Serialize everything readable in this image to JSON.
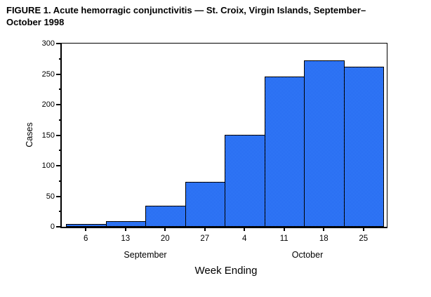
{
  "title": {
    "line1": "FIGURE 1. Acute hemorragic conjunctivitis — St. Croix, Virgin Islands, September–",
    "line2": "October 1998"
  },
  "chart_data": {
    "type": "bar",
    "title": "FIGURE 1. Acute hemorragic conjunctivitis — St. Croix, Virgin Islands, September–October 1998",
    "categories": [
      "6",
      "13",
      "20",
      "27",
      "4",
      "11",
      "18",
      "25"
    ],
    "values": [
      5,
      9,
      34,
      74,
      150,
      246,
      272,
      262
    ],
    "series_name": "Cases",
    "xlabel": "Week Ending",
    "ylabel": "Cases",
    "ylim": [
      0,
      300
    ],
    "ytick_interval": 50,
    "yminor_interval": 25,
    "grid": false,
    "legend": "none",
    "month_groups": [
      {
        "label": "September",
        "weeks": [
          "6",
          "13",
          "20",
          "27"
        ]
      },
      {
        "label": "October",
        "weeks": [
          "4",
          "11",
          "18",
          "25"
        ]
      }
    ],
    "colors": {
      "bar_fill_light": "#4fa5ff",
      "bar_fill_dark": "#0a3fe8",
      "bar_border": "#000000",
      "axis": "#000000",
      "text": "#000000",
      "background": "#ffffff"
    }
  }
}
